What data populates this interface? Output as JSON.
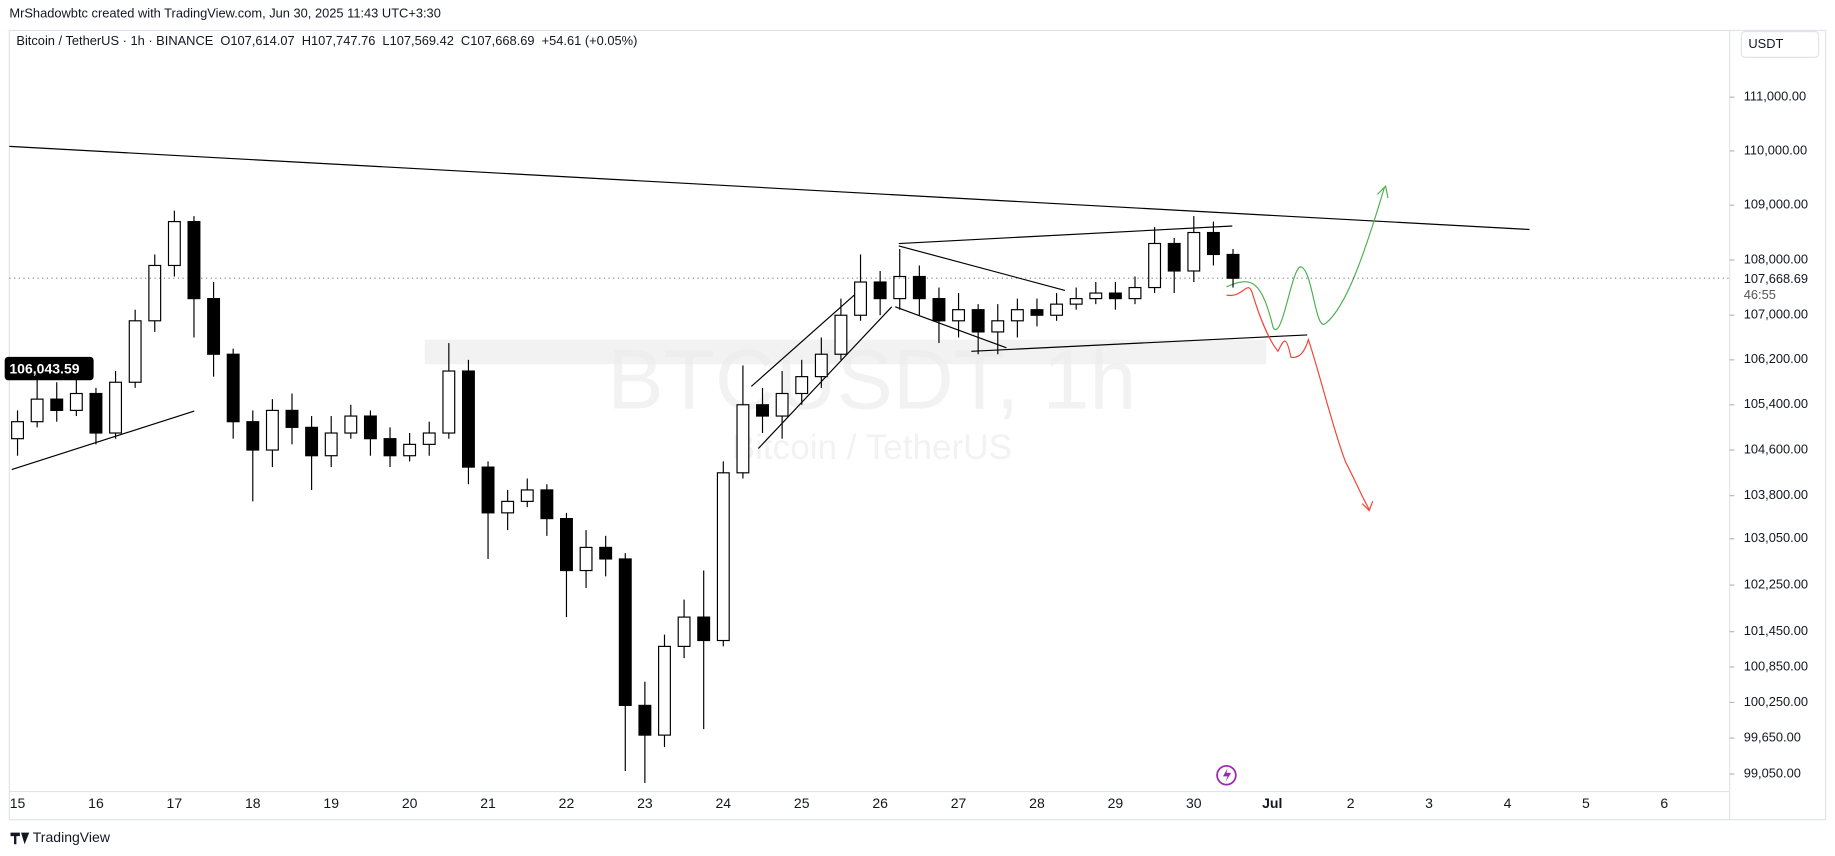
{
  "attribution": "MrShadowbtc created with TradingView.com, Jun 30, 2025 11:43 UTC+3:30",
  "brand": "TradingView",
  "chart_data": {
    "type": "candlestick",
    "legend": {
      "symbol": "Bitcoin / TetherUS · 1h · BINANCE",
      "items": [
        {
          "key": "O",
          "value": "107,614.07"
        },
        {
          "key": "H",
          "value": "107,747.76"
        },
        {
          "key": "L",
          "value": "107,569.42"
        },
        {
          "key": "C",
          "value": "107,668.69"
        }
      ],
      "change": "+54.61 (+0.05%)"
    },
    "currency": "USDT",
    "watermark": {
      "symbol": "BTCUSDT, 1h",
      "description": "Bitcoin / TetherUS"
    },
    "log_scale": true,
    "colors": {
      "up": "#ffffff",
      "down": "#000000",
      "outline": "#000000"
    },
    "x": [
      0,
      6,
      12,
      18,
      24,
      30,
      36,
      42,
      48,
      54,
      60,
      66,
      72,
      78,
      84,
      90,
      96,
      102,
      108,
      114,
      120,
      126,
      132,
      138,
      144,
      150,
      156,
      162,
      168,
      174,
      180,
      186,
      192,
      198,
      204,
      210,
      216,
      222,
      228,
      234,
      240,
      246,
      252,
      258,
      264,
      270,
      276,
      282,
      288,
      294,
      300,
      306,
      312,
      318,
      324,
      330,
      336,
      342,
      348,
      354,
      360,
      366,
      372
    ],
    "open": [
      104800,
      105100,
      105500,
      105300,
      105600,
      104900,
      105800,
      106900,
      107900,
      108700,
      107300,
      106300,
      105100,
      104600,
      105300,
      105000,
      104500,
      104900,
      105200,
      104800,
      104500,
      104700,
      104900,
      106000,
      104300,
      103500,
      103700,
      103900,
      103400,
      102500,
      102900,
      102700,
      100200,
      99700,
      101200,
      101700,
      101300,
      104200,
      105400,
      105200,
      105600,
      105900,
      106300,
      107000,
      107600,
      107300,
      107700,
      107300,
      106900,
      107100,
      106700,
      106900,
      107100,
      107000,
      107200,
      107300,
      107400,
      107300,
      107500,
      108300,
      107800,
      108500,
      108100
    ],
    "high": [
      105300,
      106000,
      105800,
      105900,
      105700,
      106000,
      107100,
      108100,
      108900,
      108800,
      107600,
      106400,
      105300,
      105500,
      105600,
      105200,
      105200,
      105400,
      105300,
      105000,
      104900,
      105100,
      106500,
      106200,
      104400,
      103900,
      104100,
      104000,
      103500,
      103200,
      103100,
      102800,
      100600,
      101400,
      102000,
      102500,
      104400,
      106100,
      105700,
      106000,
      106200,
      106600,
      107300,
      108100,
      107800,
      108200,
      107900,
      107500,
      107400,
      107200,
      107200,
      107300,
      107300,
      107400,
      107500,
      107600,
      107600,
      107700,
      108600,
      108400,
      108800,
      108700,
      108200
    ],
    "low": [
      104500,
      105000,
      105100,
      105200,
      104700,
      104800,
      105700,
      106700,
      107700,
      106600,
      105900,
      104800,
      103700,
      104300,
      104700,
      103900,
      104300,
      104800,
      104500,
      104300,
      104400,
      104500,
      104800,
      104000,
      102700,
      103200,
      103600,
      103100,
      101700,
      102200,
      102400,
      99100,
      98900,
      99500,
      101000,
      99800,
      101200,
      104100,
      104900,
      104800,
      105400,
      105700,
      106200,
      106900,
      107000,
      107100,
      107000,
      106500,
      106600,
      106300,
      106300,
      106600,
      106800,
      106900,
      107100,
      107200,
      107100,
      107200,
      107400,
      107400,
      107600,
      107900,
      107500
    ],
    "close": [
      105100,
      105500,
      105300,
      105600,
      104900,
      105800,
      106900,
      107900,
      108700,
      107300,
      106300,
      105100,
      104600,
      105300,
      105000,
      104500,
      104900,
      105200,
      104800,
      104500,
      104700,
      104900,
      106000,
      104300,
      103500,
      103700,
      103900,
      103400,
      102500,
      102900,
      102700,
      100200,
      99700,
      101200,
      101700,
      101300,
      104200,
      105400,
      105200,
      105600,
      105900,
      106300,
      107000,
      107600,
      107300,
      107700,
      107300,
      106900,
      107100,
      106700,
      106900,
      107100,
      107000,
      107200,
      107300,
      107400,
      107300,
      107500,
      108300,
      107800,
      108500,
      108100,
      107668.69
    ],
    "xlim": [
      -2.5,
      524
    ],
    "ylim": [
      98679,
      112165
    ],
    "xticks": [
      {
        "value": 0,
        "label": "15"
      },
      {
        "value": 24,
        "label": "16"
      },
      {
        "value": 48,
        "label": "17"
      },
      {
        "value": 72,
        "label": "18"
      },
      {
        "value": 96,
        "label": "19"
      },
      {
        "value": 120,
        "label": "20"
      },
      {
        "value": 144,
        "label": "21"
      },
      {
        "value": 168,
        "label": "22"
      },
      {
        "value": 192,
        "label": "23"
      },
      {
        "value": 216,
        "label": "24"
      },
      {
        "value": 240,
        "label": "25"
      },
      {
        "value": 264,
        "label": "26"
      },
      {
        "value": 288,
        "label": "27"
      },
      {
        "value": 312,
        "label": "28"
      },
      {
        "value": 336,
        "label": "29"
      },
      {
        "value": 360,
        "label": "30"
      },
      {
        "value": 384,
        "label": "Jul"
      },
      {
        "value": 408,
        "label": "2"
      },
      {
        "value": 432,
        "label": "3"
      },
      {
        "value": 456,
        "label": "4"
      },
      {
        "value": 480,
        "label": "5"
      },
      {
        "value": 504,
        "label": "6"
      }
    ],
    "yticks": [
      {
        "value": 111000,
        "label": "111,000.00"
      },
      {
        "value": 110000,
        "label": "110,000.00"
      },
      {
        "value": 109000,
        "label": "109,000.00"
      },
      {
        "value": 108000,
        "label": "108,000.00"
      },
      {
        "value": 107000,
        "label": "107,000.00"
      },
      {
        "value": 106200,
        "label": "106,200.00"
      },
      {
        "value": 105400,
        "label": "105,400.00"
      },
      {
        "value": 104600,
        "label": "104,600.00"
      },
      {
        "value": 103800,
        "label": "103,800.00"
      },
      {
        "value": 103050,
        "label": "103,050.00"
      },
      {
        "value": 102250,
        "label": "102,250.00"
      },
      {
        "value": 101450,
        "label": "101,450.00"
      },
      {
        "value": 100850,
        "label": "100,850.00"
      },
      {
        "value": 100250,
        "label": "100,250.00"
      },
      {
        "value": 99650,
        "label": "99,650.00"
      },
      {
        "value": 99050,
        "label": "99,050.00"
      }
    ],
    "last_price": {
      "value": 107668.69,
      "label": "107,668.69"
    },
    "countdown": "46:55",
    "price_line": {
      "value": 106043.59,
      "label": "106,043.59"
    }
  }
}
